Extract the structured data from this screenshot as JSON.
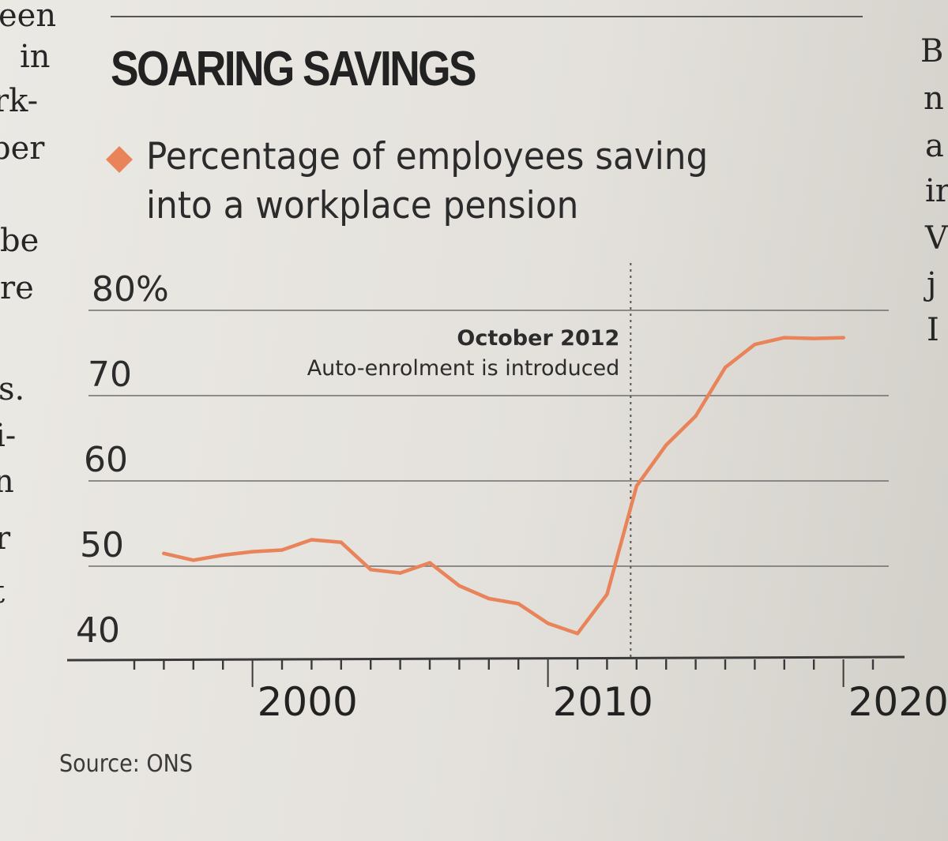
{
  "margin_left": [
    "een",
    "in",
    "rk-",
    "per",
    "be",
    "re",
    "s.",
    "i-",
    "n",
    "r",
    "t"
  ],
  "margin_right": [
    "B",
    "n",
    "a",
    "ir",
    "V",
    "j",
    "I"
  ],
  "headline": "SOARING SAVINGS",
  "source": "Source: ONS",
  "chart_data": {
    "type": "line",
    "title": "Percentage of employees saving into a workplace pension",
    "title_lines": [
      "Percentage of employees saving",
      "into a workplace pension"
    ],
    "xlabel": "",
    "ylabel": "",
    "y_ticks": [
      "80%",
      "70",
      "60",
      "50",
      "40"
    ],
    "y_tick_values": [
      80,
      70,
      60,
      50,
      40
    ],
    "x_ticks": [
      "2000",
      "2010",
      "2020"
    ],
    "x_tick_values": [
      2000,
      2010,
      2020
    ],
    "ylim": [
      40,
      80
    ],
    "xlim": [
      1996,
      2021
    ],
    "grid": true,
    "legend": "none",
    "line_color": "#e8835a",
    "series": [
      {
        "x": [
          1997,
          1998,
          1999,
          2000,
          2001,
          2002,
          2003,
          2004,
          2005,
          2006,
          2007,
          2008,
          2009,
          2010,
          2011,
          2012,
          2013,
          2014,
          2015,
          2016,
          2017,
          2018,
          2019,
          2020
        ],
        "values": [
          51.5,
          50.7,
          51.3,
          51.7,
          51.9,
          53.1,
          52.8,
          49.6,
          49.2,
          50.4,
          47.7,
          46.2,
          45.6,
          43.3,
          42.1,
          46.7,
          59.4,
          64.2,
          67.6,
          73.3,
          76.0,
          76.8,
          76.7,
          76.8
        ]
      }
    ],
    "annotation": {
      "x": 2012.8,
      "lines": [
        "October 2012",
        "Auto-enrolment is introduced"
      ]
    }
  }
}
